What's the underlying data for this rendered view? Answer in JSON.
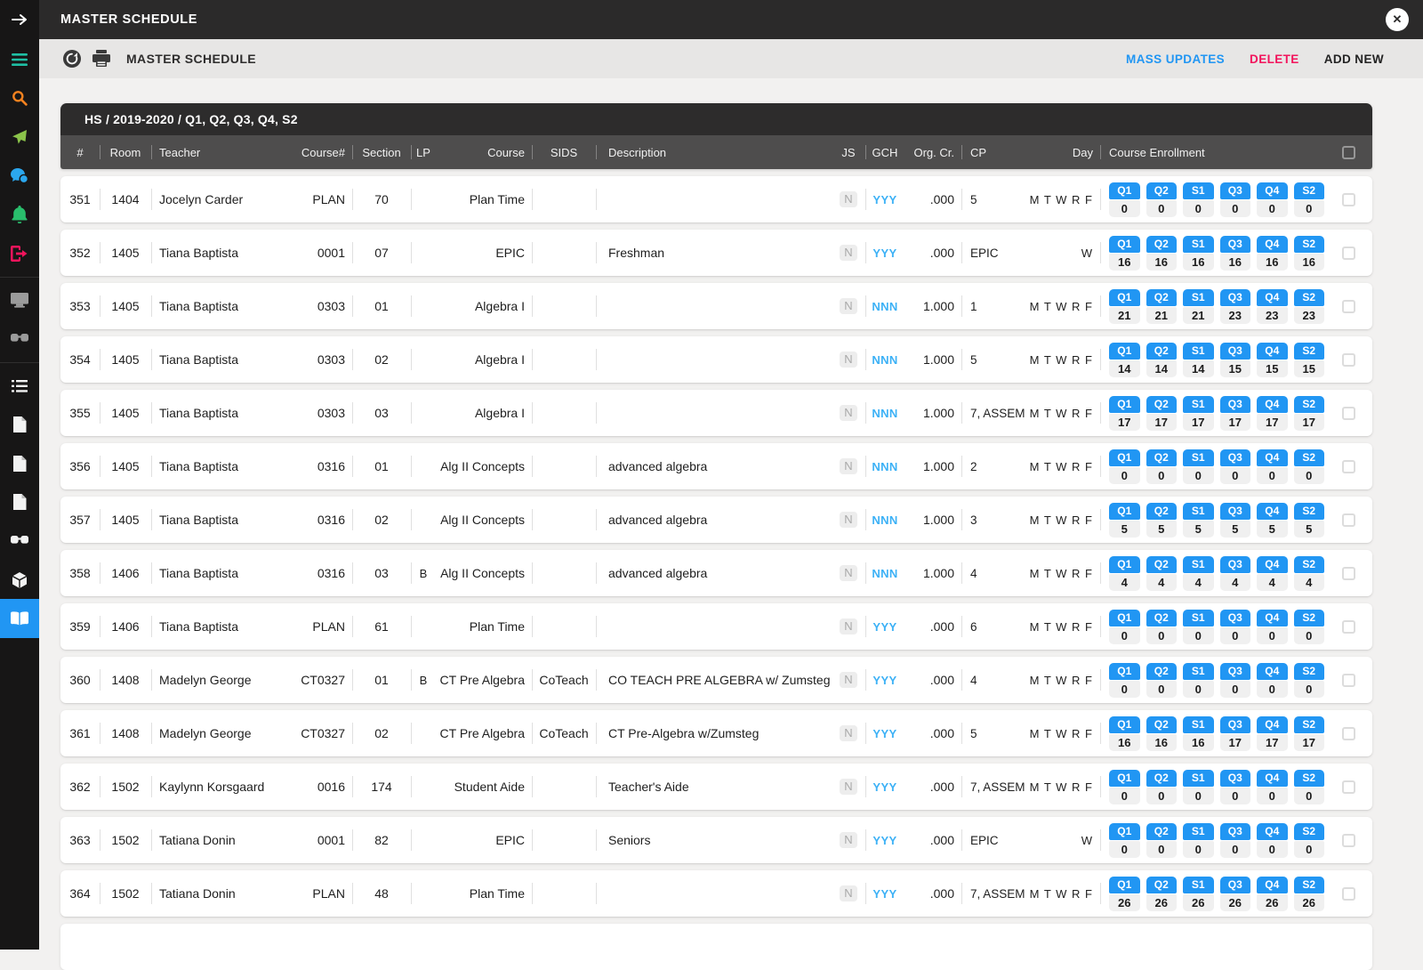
{
  "app": {
    "top_title": "MASTER SCHEDULE",
    "toolbar_title": "MASTER SCHEDULE",
    "actions": {
      "mass_updates": "MASS UPDATES",
      "delete": "DELETE",
      "add_new": "ADD NEW"
    },
    "close_glyph": "✕"
  },
  "colors": {
    "accent_blue": "#2196F3",
    "gch_blue": "#3CB1F6",
    "delete_red": "#F2145C",
    "topbar": "#2b2a2a",
    "sidebar": "#171616",
    "header_gray": "#4e4d4d"
  },
  "sidebar": {
    "top_icon": "arrow-right",
    "groups": [
      [
        {
          "icon": "menu",
          "color": "#1FBFA4"
        },
        {
          "icon": "search",
          "color": "#F5821F"
        },
        {
          "icon": "send",
          "color": "#8BC34A"
        },
        {
          "icon": "chat",
          "color": "#2BA7EE"
        },
        {
          "icon": "bell",
          "color": "#29BE6C"
        },
        {
          "icon": "logout",
          "color": "#F2145C"
        }
      ],
      [
        {
          "icon": "monitor",
          "color": "#9b9b9b"
        },
        {
          "icon": "glasses",
          "color": "#9b9b9b"
        }
      ],
      [
        {
          "icon": "list",
          "color": "#f2f2f2"
        },
        {
          "icon": "file",
          "color": "#f2f2f2"
        },
        {
          "icon": "file",
          "color": "#f2f2f2"
        },
        {
          "icon": "file",
          "color": "#f2f2f2"
        },
        {
          "icon": "glasses",
          "color": "#f2f2f2"
        },
        {
          "icon": "cube",
          "color": "#f2f2f2"
        },
        {
          "icon": "book",
          "color": "#ffffff",
          "active": true
        }
      ]
    ]
  },
  "table": {
    "context_header": "HS / 2019-2020 / Q1, Q2, Q3, Q4, S2",
    "columns": [
      "#",
      "Room",
      "Teacher",
      "Course#",
      "Section",
      "LP",
      "Course",
      "SIDS",
      "Description",
      "JS",
      "GCH",
      "Org. Cr.",
      "CP",
      "Day",
      "Course Enrollment"
    ],
    "enrollment_terms": [
      "Q1",
      "Q2",
      "S1",
      "Q3",
      "Q4",
      "S2"
    ],
    "rows": [
      {
        "num": "351",
        "room": "1404",
        "teacher": "Jocelyn Carder",
        "course_num": "PLAN",
        "section": "70",
        "lp": "",
        "course": "Plan Time",
        "sids": "",
        "description": "",
        "js": "N",
        "gch": "YYY",
        "org_cr": ".000",
        "cp": "5",
        "day": "M T W R F",
        "enrollment": [
          0,
          0,
          0,
          0,
          0,
          0
        ]
      },
      {
        "num": "352",
        "room": "1405",
        "teacher": "Tiana Baptista",
        "course_num": "0001",
        "section": "07",
        "lp": "",
        "course": "EPIC",
        "sids": "",
        "description": "Freshman",
        "js": "N",
        "gch": "YYY",
        "org_cr": ".000",
        "cp": "EPIC",
        "day": "W",
        "enrollment": [
          16,
          16,
          16,
          16,
          16,
          16
        ]
      },
      {
        "num": "353",
        "room": "1405",
        "teacher": "Tiana Baptista",
        "course_num": "0303",
        "section": "01",
        "lp": "",
        "course": "Algebra I",
        "sids": "",
        "description": "",
        "js": "N",
        "gch": "NNN",
        "org_cr": "1.000",
        "cp": "1",
        "day": "M T W R F",
        "enrollment": [
          21,
          21,
          21,
          23,
          23,
          23
        ]
      },
      {
        "num": "354",
        "room": "1405",
        "teacher": "Tiana Baptista",
        "course_num": "0303",
        "section": "02",
        "lp": "",
        "course": "Algebra I",
        "sids": "",
        "description": "",
        "js": "N",
        "gch": "NNN",
        "org_cr": "1.000",
        "cp": "5",
        "day": "M T W R F",
        "enrollment": [
          14,
          14,
          14,
          15,
          15,
          15
        ]
      },
      {
        "num": "355",
        "room": "1405",
        "teacher": "Tiana Baptista",
        "course_num": "0303",
        "section": "03",
        "lp": "",
        "course": "Algebra I",
        "sids": "",
        "description": "",
        "js": "N",
        "gch": "NNN",
        "org_cr": "1.000",
        "cp": "7, ASSEM",
        "day": "M T W R F",
        "enrollment": [
          17,
          17,
          17,
          17,
          17,
          17
        ]
      },
      {
        "num": "356",
        "room": "1405",
        "teacher": "Tiana Baptista",
        "course_num": "0316",
        "section": "01",
        "lp": "",
        "course": "Alg II Concepts",
        "sids": "",
        "description": "advanced algebra",
        "js": "N",
        "gch": "NNN",
        "org_cr": "1.000",
        "cp": "2",
        "day": "M T W R F",
        "enrollment": [
          0,
          0,
          0,
          0,
          0,
          0
        ]
      },
      {
        "num": "357",
        "room": "1405",
        "teacher": "Tiana Baptista",
        "course_num": "0316",
        "section": "02",
        "lp": "",
        "course": "Alg II Concepts",
        "sids": "",
        "description": "advanced algebra",
        "js": "N",
        "gch": "NNN",
        "org_cr": "1.000",
        "cp": "3",
        "day": "M T W R F",
        "enrollment": [
          5,
          5,
          5,
          5,
          5,
          5
        ]
      },
      {
        "num": "358",
        "room": "1406",
        "teacher": "Tiana Baptista",
        "course_num": "0316",
        "section": "03",
        "lp": "B",
        "course": "Alg II Concepts",
        "sids": "",
        "description": "advanced algebra",
        "js": "N",
        "gch": "NNN",
        "org_cr": "1.000",
        "cp": "4",
        "day": "M T W R F",
        "enrollment": [
          4,
          4,
          4,
          4,
          4,
          4
        ]
      },
      {
        "num": "359",
        "room": "1406",
        "teacher": "Tiana Baptista",
        "course_num": "PLAN",
        "section": "61",
        "lp": "",
        "course": "Plan Time",
        "sids": "",
        "description": "",
        "js": "N",
        "gch": "YYY",
        "org_cr": ".000",
        "cp": "6",
        "day": "M T W R F",
        "enrollment": [
          0,
          0,
          0,
          0,
          0,
          0
        ]
      },
      {
        "num": "360",
        "room": "1408",
        "teacher": "Madelyn George",
        "course_num": "CT0327",
        "section": "01",
        "lp": "B",
        "course": "CT Pre Algebra",
        "sids": "CoTeach",
        "description": "CO TEACH PRE ALGEBRA w/ Zumsteg",
        "js": "N",
        "gch": "YYY",
        "org_cr": ".000",
        "cp": "4",
        "day": "M T W R F",
        "enrollment": [
          0,
          0,
          0,
          0,
          0,
          0
        ]
      },
      {
        "num": "361",
        "room": "1408",
        "teacher": "Madelyn George",
        "course_num": "CT0327",
        "section": "02",
        "lp": "",
        "course": "CT Pre Algebra",
        "sids": "CoTeach",
        "description": "CT  Pre-Algebra w/Zumsteg",
        "js": "N",
        "gch": "YYY",
        "org_cr": ".000",
        "cp": "5",
        "day": "M T W R F",
        "enrollment": [
          16,
          16,
          16,
          17,
          17,
          17
        ]
      },
      {
        "num": "362",
        "room": "1502",
        "teacher": "Kaylynn Korsgaard",
        "course_num": "0016",
        "section": "174",
        "lp": "",
        "course": "Student Aide",
        "sids": "",
        "description": "Teacher's Aide",
        "js": "N",
        "gch": "YYY",
        "org_cr": ".000",
        "cp": "7, ASSEM",
        "day": "M T W R F",
        "enrollment": [
          0,
          0,
          0,
          0,
          0,
          0
        ]
      },
      {
        "num": "363",
        "room": "1502",
        "teacher": "Tatiana Donin",
        "course_num": "0001",
        "section": "82",
        "lp": "",
        "course": "EPIC",
        "sids": "",
        "description": "Seniors",
        "js": "N",
        "gch": "YYY",
        "org_cr": ".000",
        "cp": "EPIC",
        "day": "W",
        "enrollment": [
          0,
          0,
          0,
          0,
          0,
          0
        ]
      },
      {
        "num": "364",
        "room": "1502",
        "teacher": "Tatiana Donin",
        "course_num": "PLAN",
        "section": "48",
        "lp": "",
        "course": "Plan Time",
        "sids": "",
        "description": "",
        "js": "N",
        "gch": "YYY",
        "org_cr": ".000",
        "cp": "7, ASSEM",
        "day": "M T W R F",
        "enrollment": [
          26,
          26,
          26,
          26,
          26,
          26
        ]
      }
    ]
  }
}
